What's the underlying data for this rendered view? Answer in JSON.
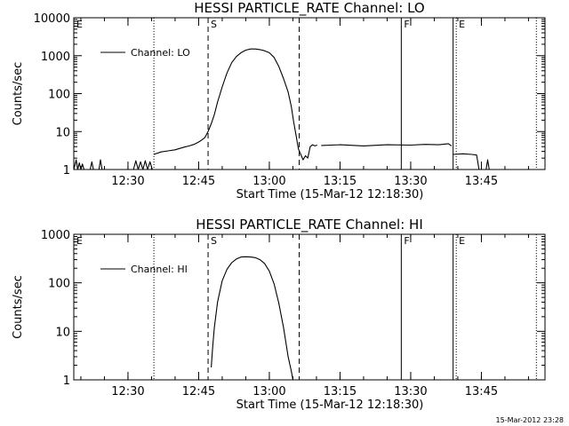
{
  "chart_data": [
    {
      "type": "line",
      "title": "HESSI PARTICLE_RATE Channel: LO",
      "xlabel": "Start Time (15-Mar-12 12:18:30)",
      "ylabel": "Counts/sec",
      "y_scale": "log",
      "ylim": [
        1,
        10000
      ],
      "xlim": [
        "12:18:30",
        "13:58:30"
      ],
      "x_ticks": [
        "12:30",
        "12:45",
        "13:00",
        "13:15",
        "13:30",
        "13:45"
      ],
      "y_ticks": [
        "1",
        "10",
        "100",
        "1000",
        "10000"
      ],
      "grid": false,
      "legend": {
        "placement": "top-left",
        "entries": [
          "Channel: LO"
        ]
      },
      "markers": [
        {
          "label": "E",
          "time": "12:18:30",
          "style": "dotted"
        },
        {
          "label": "",
          "time": "12:35:30",
          "style": "dotted"
        },
        {
          "label": "S",
          "time": "12:47:00",
          "style": "dashed"
        },
        {
          "label": "",
          "time": "13:06:20",
          "style": "dashed"
        },
        {
          "label": "F",
          "time": "13:28:00",
          "style": "solid"
        },
        {
          "label": "",
          "time": "13:39:00",
          "style": "solid"
        },
        {
          "label": "E",
          "time": "13:39:40",
          "style": "dotted"
        },
        {
          "label": "",
          "time": "13:56:40",
          "style": "dotted"
        }
      ],
      "series": [
        {
          "name": "Channel: LO",
          "segments": [
            {
              "x": [
                "12:18:30",
                "12:19:00",
                "12:19:20",
                "12:19:40",
                "12:20:00",
                "12:20:20",
                "12:20:40"
              ],
              "y": [
                1,
                1.8,
                1,
                1.5,
                1,
                1.4,
                1
              ]
            },
            {
              "x": [
                "12:22:00",
                "12:22:20",
                "12:22:40"
              ],
              "y": [
                1,
                1.6,
                1
              ]
            },
            {
              "x": [
                "12:23:50",
                "12:24:10",
                "12:24:30"
              ],
              "y": [
                1,
                1.8,
                1
              ]
            },
            {
              "x": [
                "12:31:10",
                "12:31:40",
                "12:32:10",
                "12:32:40",
                "12:33:10",
                "12:33:40",
                "12:34:10",
                "12:34:40",
                "12:35:10"
              ],
              "y": [
                1,
                1.7,
                1,
                1.6,
                1,
                1.7,
                1,
                1.6,
                1
              ]
            },
            {
              "x": [
                "12:35:30",
                "12:37:00",
                "12:38:30",
                "12:40:00",
                "12:41:00",
                "12:42:00",
                "12:43:00",
                "12:44:00",
                "12:45:00",
                "12:45:40",
                "12:46:20",
                "12:47:00",
                "12:47:40",
                "12:48:20",
                "12:49:00",
                "12:50:00",
                "12:51:00",
                "12:52:00",
                "12:53:00",
                "12:54:00",
                "12:55:00",
                "12:56:00",
                "12:57:00",
                "12:58:00",
                "12:59:00",
                "13:00:00",
                "13:01:00",
                "13:02:00",
                "13:03:00",
                "13:04:00",
                "13:04:40",
                "13:05:10",
                "13:05:40",
                "13:06:10",
                "13:06:40",
                "13:07:10",
                "13:07:40",
                "13:08:10",
                "13:08:40",
                "13:09:10",
                "13:09:40",
                "13:10:10"
              ],
              "y": [
                2.5,
                2.9,
                3.1,
                3.3,
                3.6,
                3.9,
                4.2,
                4.6,
                5.3,
                6,
                7,
                10,
                16,
                28,
                60,
                150,
                350,
                650,
                950,
                1200,
                1400,
                1500,
                1500,
                1450,
                1350,
                1200,
                900,
                520,
                250,
                110,
                45,
                18,
                8,
                3.5,
                2.5,
                1.8,
                2.3,
                2,
                4,
                4.5,
                4.2,
                4.4
              ]
            },
            {
              "x": [
                "13:11:00",
                "13:15:00",
                "13:20:00",
                "13:25:00",
                "13:30:00",
                "13:33:00",
                "13:36:00",
                "13:38:00",
                "13:38:40"
              ],
              "y": [
                4.3,
                4.5,
                4.2,
                4.5,
                4.4,
                4.6,
                4.5,
                4.8,
                4.2
              ]
            },
            {
              "x": [
                "13:39:00",
                "13:41:00",
                "13:43:00",
                "13:44:00",
                "13:44:30"
              ],
              "y": [
                2.5,
                2.6,
                2.5,
                2.4,
                1
              ]
            },
            {
              "x": [
                "13:46:00",
                "13:46:20",
                "13:46:40"
              ],
              "y": [
                1,
                1.8,
                1
              ]
            }
          ]
        }
      ]
    },
    {
      "type": "line",
      "title": "HESSI PARTICLE_RATE Channel: HI",
      "xlabel": "Start Time (15-Mar-12 12:18:30)",
      "ylabel": "Counts/sec",
      "y_scale": "log",
      "ylim": [
        1,
        1000
      ],
      "xlim": [
        "12:18:30",
        "13:58:30"
      ],
      "x_ticks": [
        "12:30",
        "12:45",
        "13:00",
        "13:15",
        "13:30",
        "13:45"
      ],
      "y_ticks": [
        "1",
        "10",
        "100",
        "1000"
      ],
      "grid": false,
      "legend": {
        "placement": "top-left",
        "entries": [
          "Channel: HI"
        ]
      },
      "markers": [
        {
          "label": "E",
          "time": "12:18:30",
          "style": "dotted"
        },
        {
          "label": "",
          "time": "12:35:30",
          "style": "dotted"
        },
        {
          "label": "S",
          "time": "12:47:00",
          "style": "dashed"
        },
        {
          "label": "",
          "time": "13:06:20",
          "style": "dashed"
        },
        {
          "label": "F",
          "time": "13:28:00",
          "style": "solid"
        },
        {
          "label": "",
          "time": "13:39:00",
          "style": "solid"
        },
        {
          "label": "E",
          "time": "13:39:40",
          "style": "dotted"
        },
        {
          "label": "",
          "time": "13:56:40",
          "style": "dotted"
        }
      ],
      "series": [
        {
          "name": "Channel: HI",
          "segments": [
            {
              "x": [
                "12:47:40",
                "12:48:00",
                "12:48:20",
                "12:49:00",
                "12:50:00",
                "12:51:00",
                "12:52:00",
                "12:53:00",
                "12:54:00",
                "12:55:00",
                "12:56:00",
                "12:57:00",
                "12:58:00",
                "12:59:00",
                "13:00:00",
                "13:01:00",
                "13:02:00",
                "13:03:00",
                "13:04:00",
                "13:04:40",
                "13:05:00"
              ],
              "y": [
                1.8,
                5,
                12,
                40,
                110,
                190,
                260,
                310,
                340,
                345,
                340,
                330,
                300,
                250,
                175,
                95,
                38,
                12,
                3,
                1.5,
                1
              ]
            }
          ]
        }
      ]
    }
  ],
  "timestamp": "15-Mar-2012 23:28"
}
